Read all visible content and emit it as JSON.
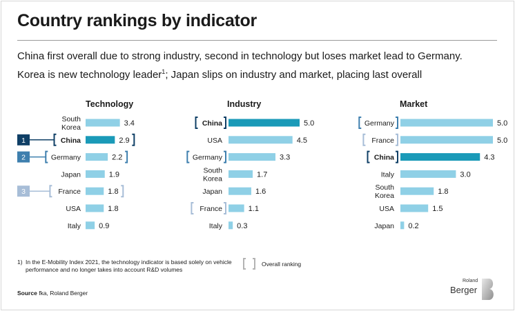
{
  "page": {
    "title": "Country rankings by indicator",
    "subtitle_line1": "China first overall due to strong industry, second in technology but loses market lead to Germany.",
    "subtitle_line2_a": "Korea is new technology leader",
    "subtitle_line2_sup": "1",
    "subtitle_line2_b": "; Japan slips on industry and market, placing last overall",
    "footnote_number": "1)",
    "footnote_text": "In the E-Mobility Index 2021, the technology indicator is based solely on vehicle performance and no longer takes into account R&D volumes",
    "legend_label": "Overall ranking",
    "source_label": "Source",
    "source_text": "fka, Roland Berger",
    "logo_small": "Roland",
    "logo_large": "Berger"
  },
  "colors": {
    "bar": "#8fd0e6",
    "bar_highlight": "#1a9ab8",
    "rank1": "#0f3f66",
    "rank2": "#3e7fae",
    "rank3": "#a7bdd7",
    "legend_bracket": "#b3b3b3"
  },
  "chart_data": [
    {
      "type": "bar",
      "title": "Technology",
      "orientation": "horizontal",
      "xlim": [
        0,
        5
      ],
      "categories": [
        "South\nKorea",
        "China",
        "Germany",
        "Japan",
        "France",
        "USA",
        "Italy"
      ],
      "values": [
        3.4,
        2.9,
        2.2,
        1.9,
        1.8,
        1.8,
        0.9
      ],
      "labels": [
        "3.4",
        "2.9",
        "2.2",
        "1.9",
        "1.8",
        "1.8",
        "0.9"
      ],
      "highlight": "China",
      "overall_rank_markers": [
        {
          "country": "China",
          "rank": "1"
        },
        {
          "country": "Germany",
          "rank": "2"
        },
        {
          "country": "France",
          "rank": "3"
        }
      ]
    },
    {
      "type": "bar",
      "title": "Industry",
      "orientation": "horizontal",
      "xlim": [
        0,
        5
      ],
      "categories": [
        "China",
        "USA",
        "Germany",
        "South\nKorea",
        "Japan",
        "France",
        "Italy"
      ],
      "values": [
        5.0,
        4.5,
        3.3,
        1.7,
        1.6,
        1.1,
        0.3
      ],
      "labels": [
        "5.0",
        "4.5",
        "3.3",
        "1.7",
        "1.6",
        "1.1",
        "0.3"
      ],
      "highlight": "China",
      "bracketed": [
        {
          "country": "China",
          "rank": 1
        },
        {
          "country": "Germany",
          "rank": 2
        },
        {
          "country": "France",
          "rank": 3
        }
      ]
    },
    {
      "type": "bar",
      "title": "Market",
      "orientation": "horizontal",
      "xlim": [
        0,
        5
      ],
      "categories": [
        "Germany",
        "France",
        "China",
        "Italy",
        "South\nKorea",
        "USA",
        "Japan"
      ],
      "values": [
        5.0,
        5.0,
        4.3,
        3.0,
        1.8,
        1.5,
        0.2
      ],
      "labels": [
        "5.0",
        "5.0",
        "4.3",
        "3.0",
        "1.8",
        "1.5",
        "0.2"
      ],
      "highlight": "China",
      "bracketed": [
        {
          "country": "Germany",
          "rank": 2
        },
        {
          "country": "France",
          "rank": 3
        },
        {
          "country": "China",
          "rank": 1
        }
      ]
    }
  ]
}
